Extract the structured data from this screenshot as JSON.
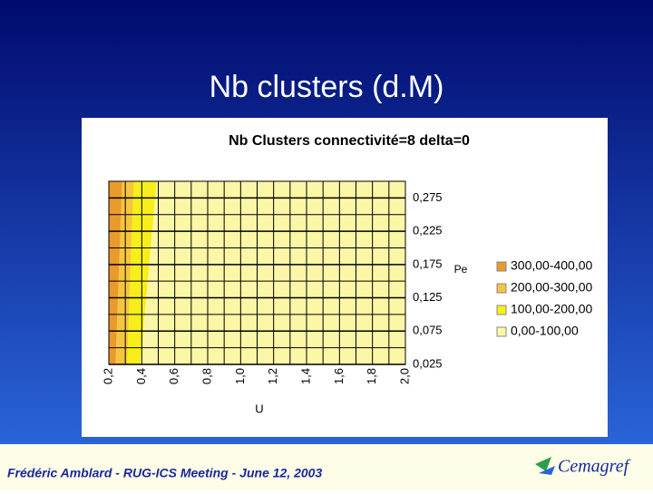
{
  "slide": {
    "title": "Nb clusters (d.M)",
    "footer": "Frédéric Amblard - RUG-ICS Meeting - June 12, 2003",
    "logo": "Cemagref"
  },
  "chart_data": {
    "type": "contour",
    "title": "Nb Clusters connectivité=8 delta=0",
    "x_label": "U",
    "y_label": "Pe",
    "xlim": [
      0.2,
      2.0
    ],
    "ylim": [
      0.025,
      0.3
    ],
    "xticks": [
      {
        "value": 0.2,
        "label": "0,2"
      },
      {
        "value": 0.4,
        "label": "0,4"
      },
      {
        "value": 0.6,
        "label": "0,6"
      },
      {
        "value": 0.8,
        "label": "0,8"
      },
      {
        "value": 1.0,
        "label": "1,0"
      },
      {
        "value": 1.2,
        "label": "1,2"
      },
      {
        "value": 1.4,
        "label": "1,4"
      },
      {
        "value": 1.6,
        "label": "1,6"
      },
      {
        "value": 1.8,
        "label": "1,8"
      },
      {
        "value": 2.0,
        "label": "2,0"
      }
    ],
    "yticks": [
      {
        "value": 0.025,
        "label": "0,025"
      },
      {
        "value": 0.075,
        "label": "0,075"
      },
      {
        "value": 0.125,
        "label": "0,125"
      },
      {
        "value": 0.175,
        "label": "0,175"
      },
      {
        "value": 0.225,
        "label": "0,225"
      },
      {
        "value": 0.275,
        "label": "0,275"
      }
    ],
    "xgrid": [
      0.3,
      0.5,
      0.7,
      0.9,
      1.1,
      1.3,
      1.5,
      1.7,
      1.9
    ],
    "ygrid": [
      0.05,
      0.1,
      0.15,
      0.2,
      0.25,
      0.3
    ],
    "series": [
      {
        "name": "300,00-400,00",
        "color": "#e99a2c",
        "boundary_x": [
          0.24,
          0.28
        ]
      },
      {
        "name": "200,00-300,00",
        "color": "#f5c542",
        "boundary_x": [
          0.31,
          0.35
        ]
      },
      {
        "name": "100,00-200,00",
        "color": "#f7ee1a",
        "boundary_x": [
          0.39,
          0.49
        ]
      },
      {
        "name": "0,00-100,00",
        "color": "#fbf7a6",
        "boundary_x": [
          2.0,
          2.0
        ]
      }
    ]
  }
}
